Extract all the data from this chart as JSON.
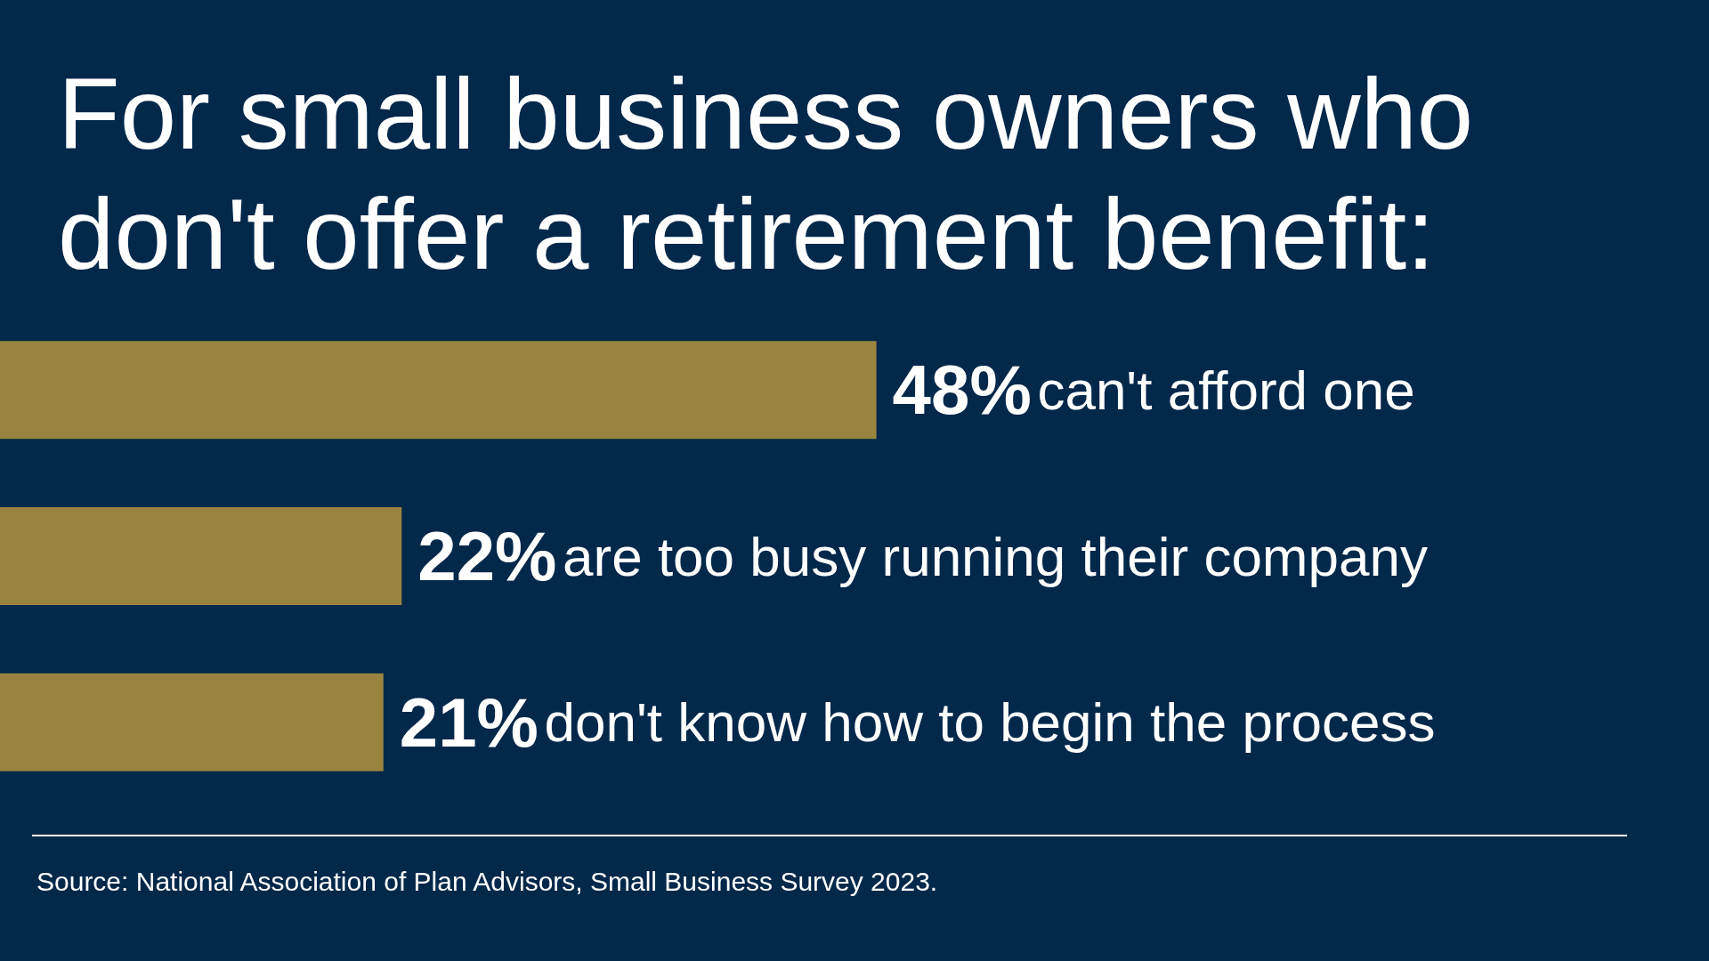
{
  "chart_data": {
    "type": "bar",
    "orientation": "horizontal",
    "title": "For small business owners who don't offer a retirement benefit:",
    "categories": [
      "can't afford one",
      "are too busy running their company",
      "don't know how to begin the process"
    ],
    "values": [
      48,
      22,
      21
    ],
    "value_labels": [
      "48%",
      "22%",
      "21%"
    ],
    "color": "#99843f",
    "tick_labels": false,
    "annotations": [
      "Source: National Association of Plan Advisors, Small Business Survey 2023."
    ]
  }
}
